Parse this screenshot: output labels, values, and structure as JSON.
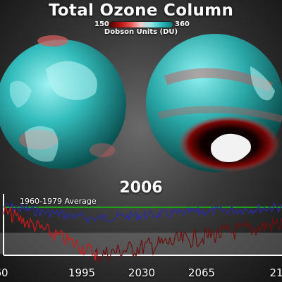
{
  "title": "Total Ozone Column",
  "colorbar": {
    "min": "150",
    "max": "360",
    "units": "Dobson Units (DU)",
    "colors": [
      "#4a0000",
      "#b01010",
      "#e85050",
      "#f0d0d0",
      "#8ee8e8",
      "#29b8b8",
      "#0c7878"
    ]
  },
  "year": "2006",
  "average_label": "1960-1979 Average",
  "timeline": {
    "x_ticks": [
      "60",
      "1995",
      "2030",
      "2065",
      "21"
    ],
    "series_colors": {
      "average": "#1fa01f",
      "recent": "#2a2aa8",
      "south_past": "#cc1818",
      "south_projection": "#6a1010"
    }
  },
  "chart_data": {
    "type": "line",
    "x_tick_labels": [
      "60",
      "1995",
      "2030",
      "2065",
      "21"
    ],
    "series": [
      {
        "name": "1960-1979 Average",
        "values": []
      }
    ]
  }
}
